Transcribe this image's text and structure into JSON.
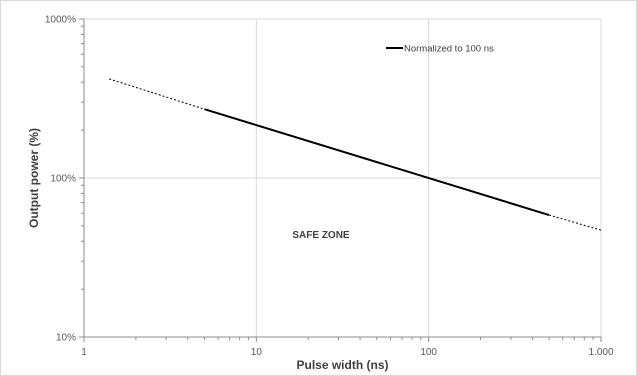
{
  "chart_data": {
    "type": "line",
    "xscale": "log",
    "yscale": "log",
    "xlim": [
      1,
      1000
    ],
    "ylim": [
      10,
      1000
    ],
    "grid": true,
    "legend_position": "top-right",
    "xlabel": "Pulse width (ns)",
    "ylabel": "Output power (%)",
    "x_tick_labels": [
      "1",
      "10",
      "100",
      "1.000"
    ],
    "x_tick_values": [
      1,
      10,
      100,
      1000
    ],
    "y_tick_labels": [
      "10%",
      "100%",
      "1000%"
    ],
    "y_tick_values": [
      10,
      100,
      1000
    ],
    "annotation": "SAFE ZONE",
    "series": [
      {
        "name": "Normalized to 100 ns",
        "color": "#000000",
        "solid": {
          "x": [
            5,
            500
          ],
          "y": [
            271,
            58.5
          ]
        },
        "dashed_segments": [
          {
            "x": [
              1.4,
              5
            ],
            "y": [
              420,
              271
            ]
          },
          {
            "x": [
              500,
              1000
            ],
            "y": [
              58.5,
              47
            ]
          }
        ]
      }
    ]
  }
}
